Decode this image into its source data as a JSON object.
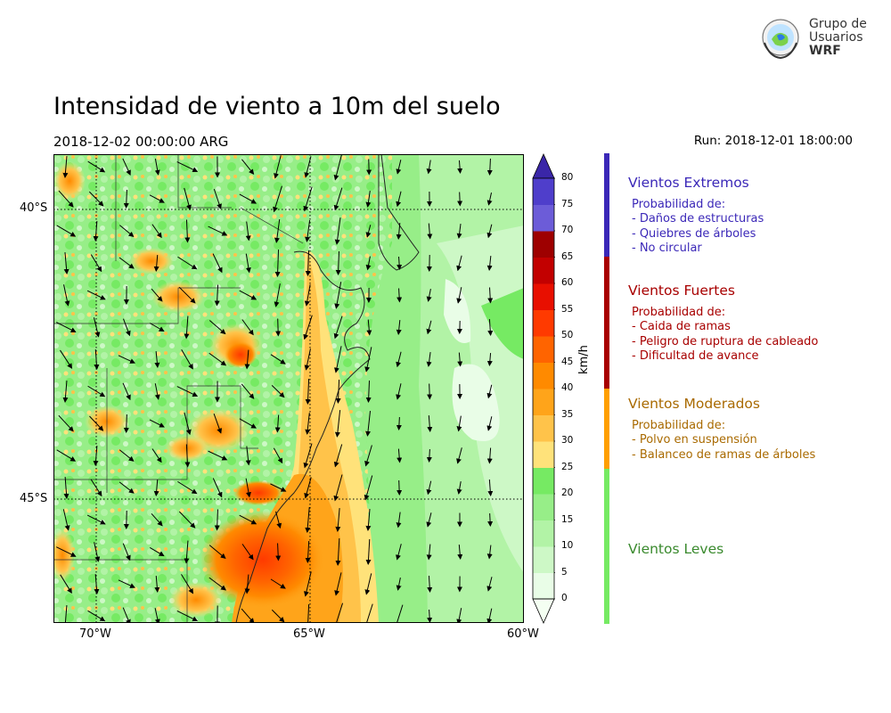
{
  "header": {
    "title": "Intensidad de viento a 10m del suelo",
    "valid_time": "2018-12-02 00:00:00 ARG",
    "run_time": "Run: 2018-12-01 18:00:00"
  },
  "logo": {
    "line1": "Grupo de",
    "line2": "Usuarios",
    "line3": "WRF"
  },
  "map": {
    "lat_labels": [
      "40°S",
      "45°S"
    ],
    "lon_labels": [
      "70°W",
      "65°W",
      "60°W"
    ],
    "extent": {
      "lon_min": -71,
      "lon_max": -60,
      "lat_min": -47,
      "lat_max": -39
    },
    "graticule": "dotted"
  },
  "colorbar": {
    "unit": "km/h",
    "ticks": [
      "0",
      "5",
      "10",
      "15",
      "20",
      "25",
      "30",
      "35",
      "40",
      "45",
      "50",
      "55",
      "60",
      "65",
      "70",
      "75",
      "80"
    ],
    "levels": [
      {
        "from": 0,
        "to": 5,
        "color": "#e9fde7"
      },
      {
        "from": 5,
        "to": 10,
        "color": "#cdf8c6"
      },
      {
        "from": 10,
        "to": 15,
        "color": "#b2f3a6"
      },
      {
        "from": 15,
        "to": 20,
        "color": "#97ee88"
      },
      {
        "from": 20,
        "to": 25,
        "color": "#76ea63"
      },
      {
        "from": 25,
        "to": 30,
        "color": "#ffe27a"
      },
      {
        "from": 30,
        "to": 35,
        "color": "#ffc34a"
      },
      {
        "from": 35,
        "to": 40,
        "color": "#ffa41a"
      },
      {
        "from": 40,
        "to": 45,
        "color": "#ff8a00"
      },
      {
        "from": 45,
        "to": 50,
        "color": "#ff6400"
      },
      {
        "from": 50,
        "to": 55,
        "color": "#ff3a00"
      },
      {
        "from": 55,
        "to": 60,
        "color": "#e80f00"
      },
      {
        "from": 60,
        "to": 65,
        "color": "#c20000"
      },
      {
        "from": 65,
        "to": 70,
        "color": "#9e0000"
      },
      {
        "from": 70,
        "to": 75,
        "color": "#6c5cd8"
      },
      {
        "from": 75,
        "to": 80,
        "color": "#4f3ecb"
      }
    ],
    "extend_min_color": "#f4fff2",
    "extend_max_color": "#3a26a8"
  },
  "categories": [
    {
      "title": "Vientos Extremos",
      "color": "#3b28b8",
      "lines": [
        "Probabilidad de:",
        "- Daños de estructuras",
        "- Quiebres de árboles",
        "- No circular"
      ]
    },
    {
      "title": "Vientos Fuertes",
      "color": "#a80000",
      "lines": [
        "Probabilidad de:",
        "- Caida de ramas",
        "- Peligro de ruptura de cableado",
        "- Dificultad de avance"
      ]
    },
    {
      "title": "Vientos Moderados",
      "color": "#a96a00",
      "bar_color": "#ff9f00",
      "lines": [
        "Probabilidad de:",
        "- Polvo en suspensión",
        "- Balanceo de ramas de árboles"
      ]
    },
    {
      "title": "Vientos Leves",
      "color": "#3a8a2e",
      "bar_color": "#76ea63",
      "lines": []
    }
  ]
}
